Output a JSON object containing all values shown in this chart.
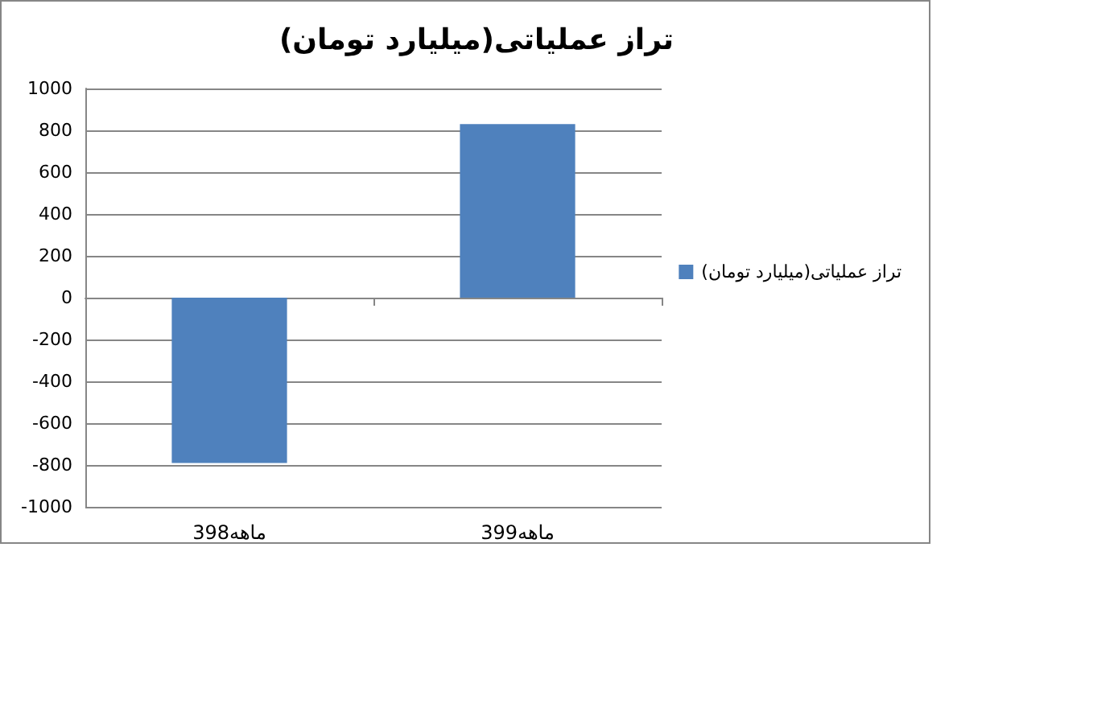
{
  "chart_data": {
    "type": "bar",
    "title": "تراز عملیاتی(میلیارد تومان)",
    "categories": [
      "3ماهه98",
      "3ماهه99"
    ],
    "series": [
      {
        "name": "تراز عملیاتی(میلیارد تومان)",
        "color": "#4f81bd",
        "values": [
          -790,
          830
        ]
      }
    ],
    "ylim": [
      -1000,
      1000
    ],
    "yticks": [
      -1000,
      -800,
      -600,
      -400,
      -200,
      0,
      200,
      400,
      600,
      800,
      1000
    ],
    "grid": "y",
    "legend": "right"
  }
}
